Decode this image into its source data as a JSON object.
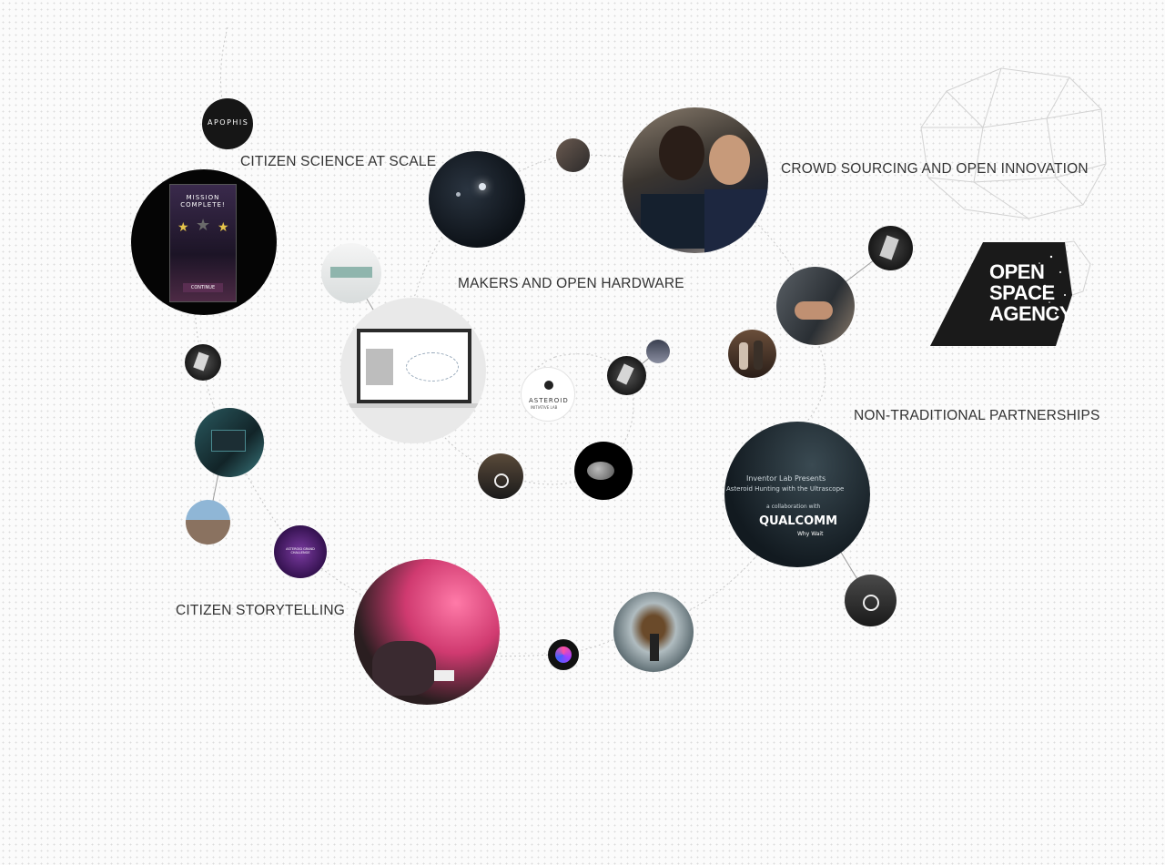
{
  "labels": {
    "citizen_science": "CITIZEN SCIENCE AT SCALE",
    "crowd_sourcing": "CROWD SOURCING AND OPEN INNOVATION",
    "makers": "MAKERS AND OPEN HARDWARE",
    "partnerships": "NON-TRADITIONAL PARTNERSHIPS",
    "storytelling": "CITIZEN STORYTELLING"
  },
  "logo": {
    "line1": "OPEN",
    "line2": "SPACE",
    "line3": "AGENCY"
  },
  "apophis": {
    "text": "APOPHIS"
  },
  "mission": {
    "title": "MISSION COMPLETE!",
    "button": "CONTINUE"
  },
  "asteroid": {
    "text": "ASTEROID",
    "sub": "INITIATIVE LAB"
  },
  "qualcomm": {
    "line1": "Inventor Lab Presents",
    "line2": "Asteroid Hunting with the Ultrascope",
    "line3": "a collaboration with",
    "brand": "QUALCOMM",
    "tagline": "Why Wait"
  },
  "program_badge": {
    "text": "ASTEROID GRAND CHALLENGE"
  },
  "colors": {
    "background": "#fbfbfb",
    "text": "#333333",
    "link": "#c8c8c8",
    "logo_bg": "#1a1a1a"
  }
}
